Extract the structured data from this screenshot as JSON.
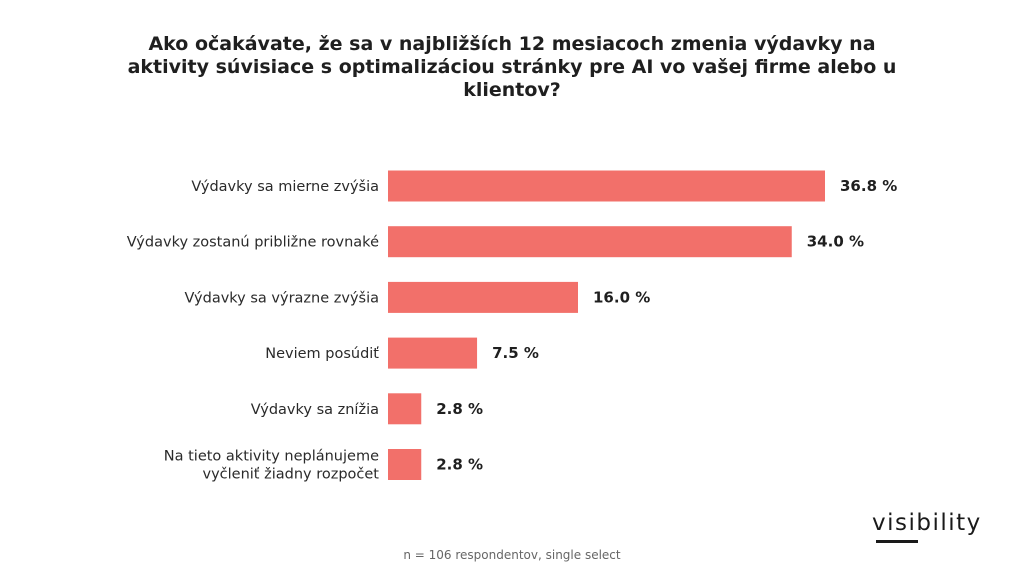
{
  "chart_data": {
    "type": "bar",
    "orientation": "horizontal",
    "title": "Ako očakávate, že sa v najbližších 12 mesiacoch zmenia výdavky na aktivity súvisiace s optimalizáciou stránky pre AI vo vašej firme alebo u klientov?",
    "categories": [
      [
        "Výdavky sa mierne zvýšia"
      ],
      [
        "Výdavky zostanú približne rovnaké"
      ],
      [
        "Výdavky sa výrazne zvýšia"
      ],
      [
        "Neviem posúdiť"
      ],
      [
        "Výdavky sa znížia"
      ],
      [
        "Na tieto aktivity neplánujeme",
        "vyčleniť žiadny rozpočet"
      ]
    ],
    "values": [
      36.8,
      34.0,
      16.0,
      7.5,
      2.8,
      2.8
    ],
    "value_labels": [
      "36.8 %",
      "34.0 %",
      "16.0 %",
      "7.5 %",
      "2.8 %",
      "2.8 %"
    ],
    "bar_color": "#f2706a",
    "xlim": [
      0,
      40
    ],
    "grid": false,
    "legend": "none"
  },
  "footnote": "n = 106 respondentov, single select",
  "logo": {
    "text": "visibility"
  }
}
